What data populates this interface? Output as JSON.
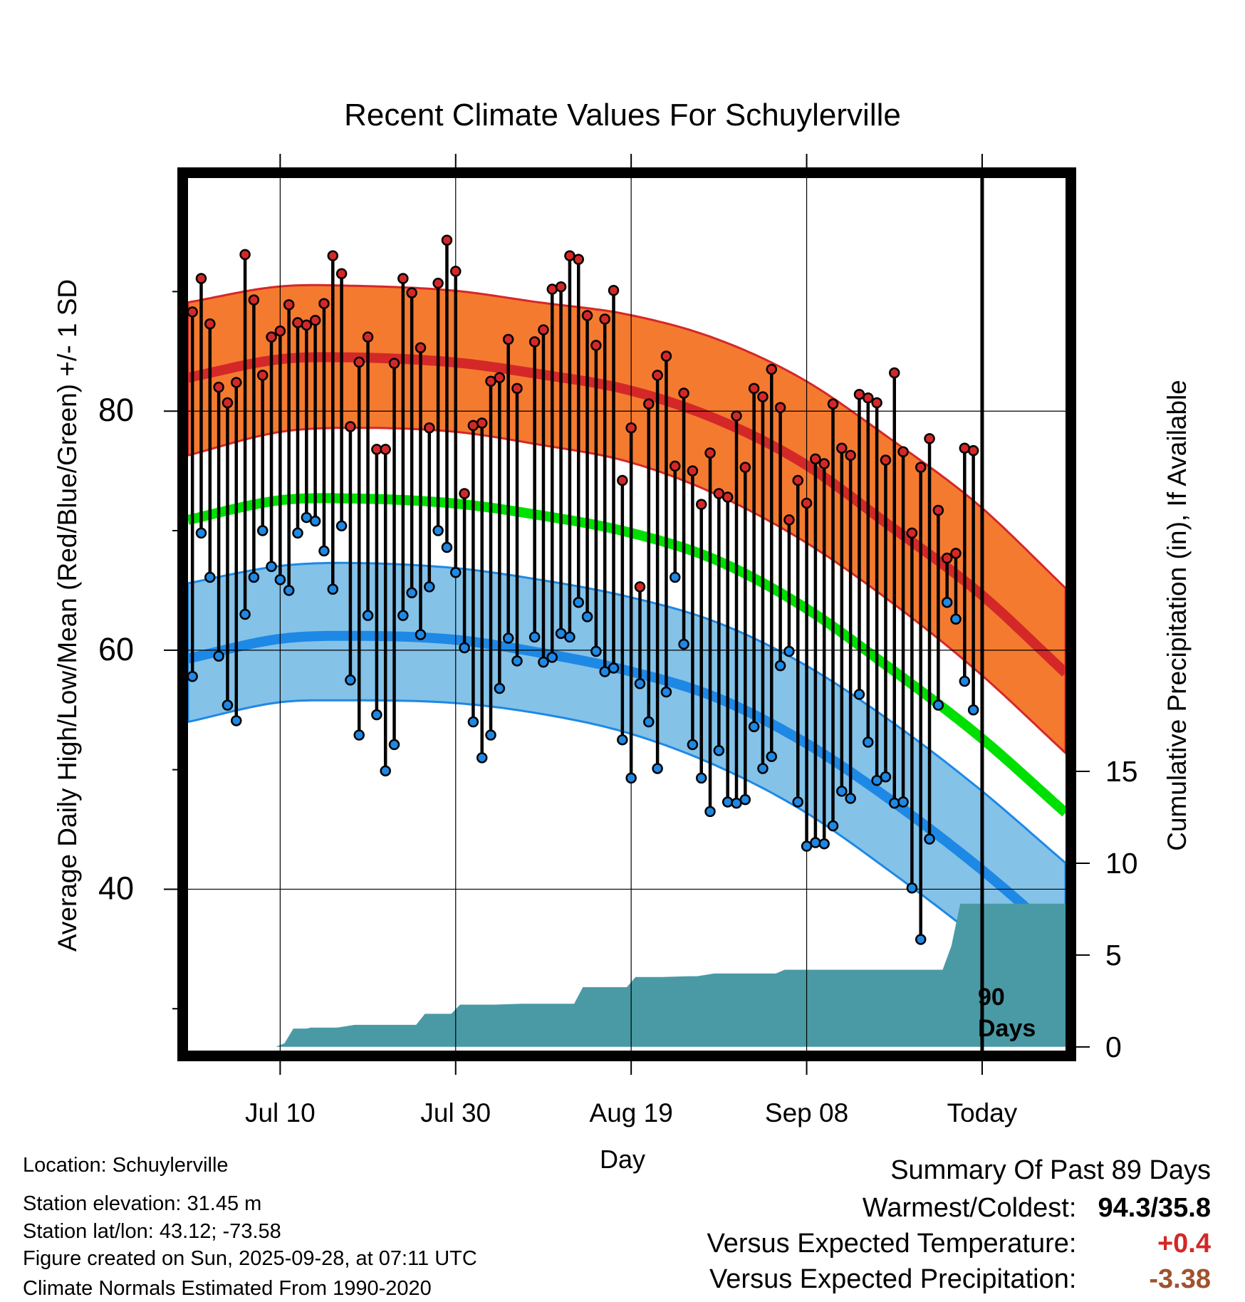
{
  "chart_data": {
    "type": "line",
    "title": "Recent Climate Values For Schuylerville",
    "xlabel": "Day",
    "ylabel": "Average Daily High/Low/Mean (Red/Blue/Green) +/- 1 SD",
    "y2label": "Cumulative Precipitation (in), If Available",
    "xlim": [
      0,
      100
    ],
    "ylim": [
      26.5,
      99.5
    ],
    "y2lim": [
      -0.2,
      47.3
    ],
    "x_ticks": [
      {
        "x": 10.5,
        "label": "Jul 10"
      },
      {
        "x": 30.5,
        "label": "Jul 30"
      },
      {
        "x": 50.5,
        "label": "Aug 19"
      },
      {
        "x": 70.5,
        "label": "Sep 08"
      },
      {
        "x": 90.5,
        "label": "Today"
      }
    ],
    "y_ticks": [
      {
        "y": 40,
        "label": "40"
      },
      {
        "y": 60,
        "label": "60"
      },
      {
        "y": 80,
        "label": "80"
      }
    ],
    "y_minor_ticks": [
      30,
      50,
      70,
      90
    ],
    "y2_ticks": [
      {
        "y": 0,
        "label": "0"
      },
      {
        "y": 5,
        "label": "5"
      },
      {
        "y": 10,
        "label": "10"
      },
      {
        "y": 15,
        "label": "15"
      }
    ],
    "today_x": 90.5,
    "today_label": [
      "90",
      "Days"
    ],
    "normals": {
      "x": [
        0,
        10,
        18,
        30,
        40,
        50,
        60,
        70,
        80,
        90,
        100
      ],
      "high_mean": [
        82.8,
        84.3,
        84.5,
        84.1,
        83.1,
        81.8,
        79.4,
        75.7,
        70.4,
        64.9,
        58.1
      ],
      "high_upper": [
        89.1,
        90.4,
        90.5,
        90.1,
        89.1,
        88.1,
        86.1,
        82.7,
        77.7,
        72.2,
        65.2
      ],
      "high_lower": [
        76.3,
        78.2,
        78.6,
        78.3,
        77.2,
        75.8,
        73.1,
        69.2,
        64.1,
        58.2,
        51.4
      ],
      "avg_mean": [
        70.9,
        72.5,
        72.7,
        72.3,
        71.3,
        69.9,
        67.6,
        63.7,
        58.5,
        52.9,
        46.4
      ],
      "low_mean": [
        59.3,
        60.9,
        61.2,
        60.9,
        59.8,
        58.3,
        56.1,
        52.4,
        47.5,
        41.9,
        35.6
      ],
      "low_upper": [
        65.6,
        67.0,
        67.3,
        66.9,
        65.9,
        64.5,
        62.4,
        58.9,
        54.1,
        48.5,
        42.2
      ],
      "low_lower": [
        54.0,
        55.6,
        55.8,
        55.6,
        54.7,
        53.1,
        50.4,
        46.6,
        41.5,
        35.9,
        29.6
      ]
    },
    "series": [
      {
        "name": "Daily High",
        "color": "#d42828",
        "values": [
          88.3,
          91.1,
          87.3,
          82.0,
          80.7,
          82.4,
          93.1,
          89.3,
          83.0,
          86.2,
          86.7,
          88.9,
          87.4,
          87.2,
          87.6,
          89.0,
          93.0,
          91.5,
          78.7,
          84.1,
          86.2,
          76.8,
          76.8,
          84.0,
          91.1,
          89.9,
          85.3,
          78.6,
          90.7,
          94.3,
          91.7,
          73.1,
          78.8,
          79.0,
          82.5,
          82.8,
          86.0,
          81.9,
          null,
          85.8,
          86.8,
          90.2,
          90.4,
          93.0,
          92.7,
          88.0,
          85.5,
          87.7,
          90.1,
          74.2,
          78.6,
          65.3,
          80.6,
          83.0,
          84.6,
          75.4,
          81.5,
          75.0,
          72.2,
          76.5,
          73.1,
          72.8,
          79.6,
          75.3,
          81.9,
          81.2,
          83.5,
          80.3,
          70.9,
          74.2,
          72.3,
          76.0,
          75.6,
          80.6,
          76.9,
          76.3,
          81.4,
          81.1,
          80.7,
          75.9,
          83.2,
          76.6,
          69.8,
          75.3,
          77.7,
          71.7,
          67.7,
          68.1,
          76.9,
          76.7
        ]
      },
      {
        "name": "Daily Low",
        "color": "#1e88e5",
        "values": [
          57.8,
          69.8,
          66.1,
          59.5,
          55.4,
          54.1,
          63.0,
          66.1,
          70.0,
          67.0,
          65.9,
          65.0,
          69.8,
          71.1,
          70.8,
          68.3,
          65.1,
          70.4,
          57.5,
          52.9,
          62.9,
          54.6,
          49.9,
          52.1,
          62.9,
          64.8,
          61.3,
          65.3,
          70.0,
          68.6,
          66.5,
          60.2,
          54.0,
          51.0,
          52.9,
          56.8,
          61.0,
          59.1,
          null,
          61.1,
          59.0,
          59.4,
          61.4,
          61.1,
          64.0,
          62.8,
          59.9,
          58.2,
          58.5,
          52.5,
          49.3,
          57.2,
          54.0,
          50.1,
          56.5,
          66.1,
          60.5,
          52.1,
          49.3,
          46.5,
          51.6,
          47.3,
          47.2,
          47.5,
          53.6,
          50.1,
          51.1,
          58.7,
          59.9,
          47.3,
          43.6,
          43.9,
          43.8,
          45.3,
          48.2,
          47.6,
          56.3,
          52.3,
          49.1,
          49.4,
          47.2,
          47.3,
          40.1,
          35.8,
          44.2,
          55.4,
          64.0,
          62.6,
          57.4,
          55.0
        ]
      }
    ],
    "precipitation": {
      "x": [
        10,
        11,
        12,
        13.5,
        14,
        17,
        19,
        20,
        26,
        27,
        30,
        31,
        33,
        35,
        38,
        40,
        44,
        45,
        47,
        48,
        50,
        51,
        53,
        54,
        57,
        58,
        60,
        61,
        63,
        65,
        67,
        68,
        70,
        72,
        75,
        77,
        80,
        82,
        85,
        86,
        87,
        88,
        89,
        90,
        100
      ],
      "values": [
        0,
        0.2,
        1.0,
        1.0,
        1.05,
        1.05,
        1.2,
        1.2,
        1.2,
        1.8,
        1.8,
        2.3,
        2.3,
        2.3,
        2.35,
        2.35,
        2.35,
        3.25,
        3.25,
        3.25,
        3.25,
        3.8,
        3.8,
        3.8,
        3.85,
        3.85,
        4.0,
        4.0,
        4.0,
        4.0,
        4.0,
        4.2,
        4.2,
        4.2,
        4.2,
        4.2,
        4.2,
        4.2,
        4.2,
        4.2,
        5.5,
        7.8,
        7.8,
        7.8,
        7.8
      ]
    }
  },
  "location": "Location: Schuylerville",
  "elevation": "Station elevation: 31.45 m",
  "latlon": "Station lat/lon: 43.12; -73.58",
  "created": "Figure created on Sun, 2025-09-28, at 07:11 UTC",
  "normals_source": "Climate Normals Estimated From 1990-2020",
  "summary": {
    "heading": "Summary Of Past 89 Days",
    "warm_cold_label": "Warmest/Coldest:",
    "warm_cold_value": "94.3/35.8",
    "temp_label": "Versus Expected Temperature:",
    "temp_value": "+0.4",
    "temp_color": "#d42828",
    "precip_label": "Versus Expected Precipitation:",
    "precip_value": "-3.38",
    "precip_color": "#a0522d"
  },
  "colors": {
    "high_band": "#f47a30",
    "high_line": "#d42828",
    "avg_line": "#00e000",
    "low_band": "#84c2e8",
    "low_line": "#1e88e5",
    "precip_fill": "#4a9aa6"
  }
}
